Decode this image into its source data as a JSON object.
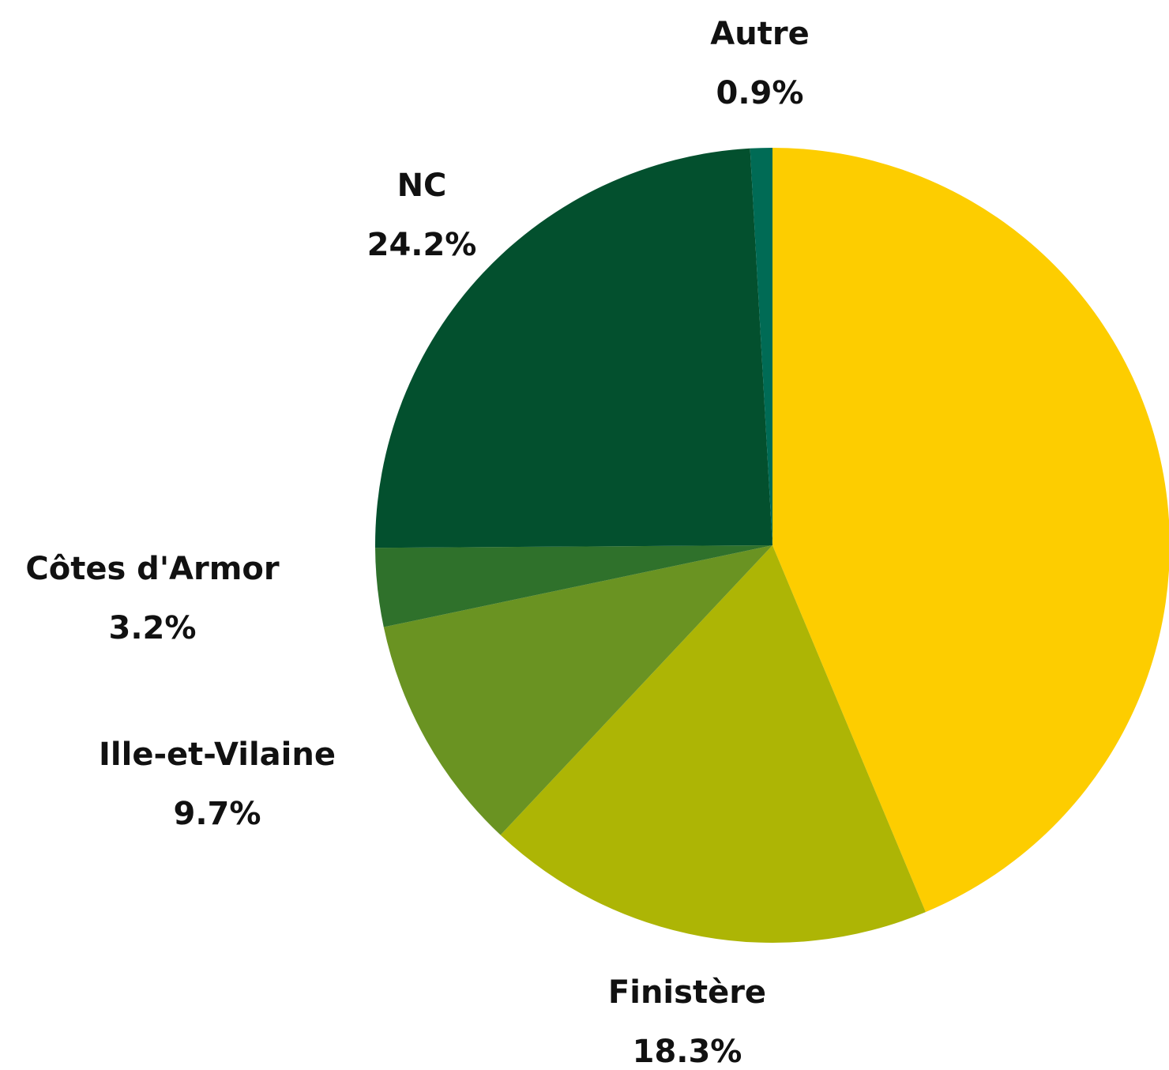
{
  "chart_data": {
    "type": "pie",
    "categories": [
      null,
      "Finistère",
      "Ille-et-Vilaine",
      "Côtes d'Armor",
      "NC",
      "Autre"
    ],
    "values": [
      43.7,
      18.3,
      9.7,
      3.2,
      24.2,
      0.9
    ],
    "value_labels": [
      null,
      "18.3%",
      "9.7%",
      "3.2%",
      "24.2%",
      "0.9%"
    ],
    "colors": [
      "#fdcd00",
      "#adb505",
      "#6a9322",
      "#2f712b",
      "#03502e",
      "#006b55"
    ]
  }
}
